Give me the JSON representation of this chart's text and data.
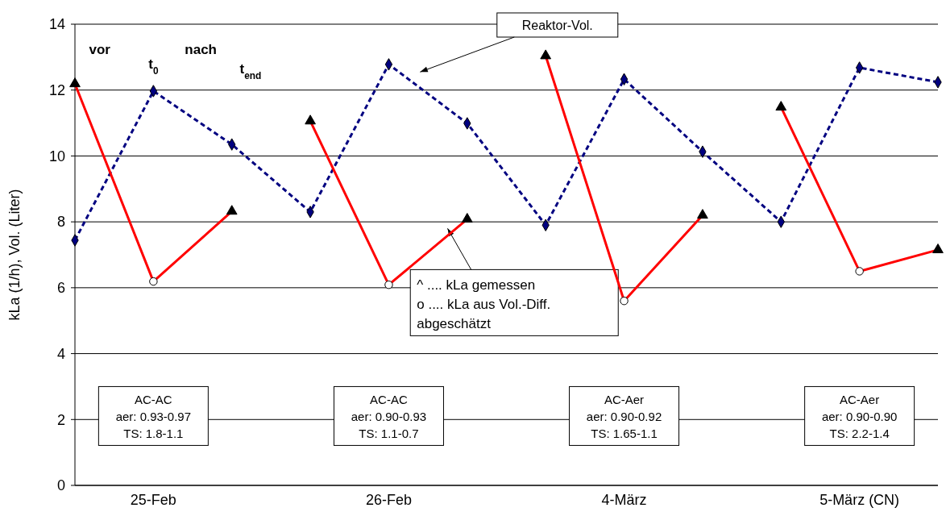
{
  "chart_data": {
    "type": "line",
    "ylabel": "kLa (1/h), Vol. (Liter)",
    "categories": [
      null,
      "25-Feb",
      null,
      null,
      "26-Feb",
      null,
      null,
      "4-März",
      null,
      null,
      "5-März (CN)",
      null
    ],
    "ylim": [
      0,
      14
    ],
    "yticks": [
      0,
      2,
      4,
      6,
      8,
      10,
      12,
      14
    ],
    "grid": "y",
    "series": [
      {
        "color": "#000080",
        "line_style": "dashed",
        "marker": "diamond",
        "values": [
          7.44,
          11.97,
          10.35,
          8.3,
          12.78,
          10.99,
          7.9,
          12.33,
          10.13,
          8.0,
          12.68,
          12.24
        ]
      },
      {
        "type": "line",
        "color": "#ff0000",
        "line_style": "solid",
        "marker": "none",
        "values": [
          12.19,
          6.19,
          8.32,
          null,
          null,
          null,
          null,
          null,
          null,
          null,
          null,
          null
        ]
      },
      {
        "type": "line",
        "color": "#ff0000",
        "line_style": "solid",
        "marker": "none",
        "values": [
          null,
          null,
          null,
          11.06,
          6.09,
          8.08,
          null,
          null,
          null,
          null,
          null,
          null
        ]
      },
      {
        "type": "line",
        "color": "#ff0000",
        "line_style": "solid",
        "marker": "none",
        "values": [
          null,
          null,
          null,
          null,
          null,
          null,
          13.04,
          5.6,
          8.2,
          null,
          null,
          null
        ]
      },
      {
        "type": "line",
        "color": "#ff0000",
        "line_style": "solid",
        "marker": "none",
        "values": [
          null,
          null,
          null,
          null,
          null,
          null,
          null,
          null,
          null,
          11.48,
          6.5,
          7.15
        ]
      },
      {
        "type": "scatter",
        "color": "#000000",
        "marker": "triangle",
        "values": [
          12.19,
          null,
          8.32,
          11.06,
          null,
          8.08,
          13.04,
          null,
          8.2,
          11.48,
          null,
          7.15
        ]
      },
      {
        "type": "scatter",
        "color": "#ffffff",
        "marker": "circle",
        "values": [
          null,
          6.19,
          null,
          null,
          6.09,
          null,
          null,
          5.6,
          null,
          null,
          6.5,
          null
        ]
      }
    ],
    "annotations": [
      "vor",
      "t$_{0}$",
      "nach",
      "t$_{end}$",
      "Reaktor-Vol.",
      "^ .... kLa gemessen\no .... kLa aus Vol.-Diff.\nabgeschätzt",
      "AC-AC\naer: 0.93-0.97\nTS: 1.8-1.1",
      "AC-AC\naer: 0.90-0.93\nTS: 1.1-0.7",
      "AC-Aer\naer: 0.90-0.92\nTS: 1.65-1.1",
      "AC-Aer\naer: 0.90-0.90\nTS: 2.2-1.4"
    ]
  }
}
